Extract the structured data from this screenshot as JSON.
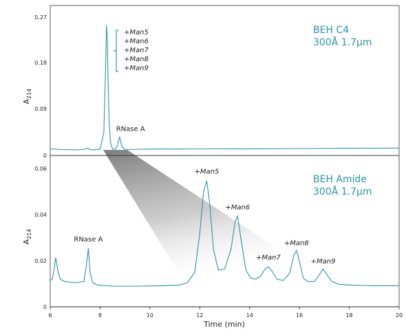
{
  "chart_data": [
    {
      "type": "line",
      "panel": "top",
      "column_label": [
        "BEH C4",
        "300Å 1.7µm"
      ],
      "ylabel": "A214",
      "ylabel_main": "A",
      "ylabel_sub": "214",
      "xlim": [
        6,
        20
      ],
      "ylim": [
        0,
        0.27
      ],
      "yticks": [
        "0",
        "0.09",
        "0.18",
        "0.27"
      ],
      "ytick_values": [
        0,
        0.09,
        0.18,
        0.27
      ],
      "line_color": "#2a93a8",
      "series": [
        {
          "x": [
            6.0,
            6.5,
            7.0,
            7.3,
            7.5,
            7.6,
            7.7,
            8.0,
            8.15,
            8.22,
            8.26,
            8.29,
            8.32,
            8.36,
            8.42,
            8.5,
            8.6,
            8.7,
            8.78,
            8.86,
            8.95,
            9.1,
            9.5,
            10,
            12,
            14,
            16,
            18,
            20
          ],
          "y": [
            0.013,
            0.0115,
            0.0112,
            0.0115,
            0.014,
            0.0115,
            0.011,
            0.012,
            0.045,
            0.17,
            0.255,
            0.23,
            0.15,
            0.07,
            0.025,
            0.013,
            0.012,
            0.02,
            0.037,
            0.02,
            0.0125,
            0.0115,
            0.0122,
            0.0125,
            0.0128,
            0.013,
            0.0135,
            0.014,
            0.0145
          ]
        }
      ],
      "annotations": [
        {
          "text": "RNase A",
          "x": 8.78,
          "y": 0.037
        },
        {
          "text": "+Man5",
          "group": "glycoforms"
        },
        {
          "text": "+Man6",
          "group": "glycoforms"
        },
        {
          "text": "+Man7",
          "group": "glycoforms"
        },
        {
          "text": "+Man8",
          "group": "glycoforms"
        },
        {
          "text": "+Man9",
          "group": "glycoforms"
        }
      ]
    },
    {
      "type": "line",
      "panel": "bottom",
      "column_label": [
        "BEH Amide",
        "300Å 1.7µm"
      ],
      "xlabel": "Time (min)",
      "ylabel": "A214",
      "ylabel_main": "A",
      "ylabel_sub": "214",
      "xlim": [
        6,
        20
      ],
      "ylim": [
        0,
        0.06
      ],
      "xticks": [
        "6",
        "8",
        "10",
        "12",
        "14",
        "16",
        "18",
        "20"
      ],
      "xtick_values": [
        6,
        8,
        10,
        12,
        14,
        16,
        18,
        20
      ],
      "yticks": [
        "0",
        "0.02",
        "0.04",
        "0.06"
      ],
      "ytick_values": [
        0,
        0.02,
        0.04,
        0.06
      ],
      "line_color": "#2a93a8",
      "series": [
        {
          "x": [
            6.0,
            6.08,
            6.15,
            6.22,
            6.3,
            6.4,
            6.6,
            7.0,
            7.35,
            7.45,
            7.53,
            7.6,
            7.7,
            7.9,
            8.5,
            9.5,
            10.5,
            11.2,
            11.5,
            11.8,
            12.0,
            12.15,
            12.28,
            12.4,
            12.55,
            12.75,
            13.0,
            13.25,
            13.42,
            13.52,
            13.65,
            13.85,
            14.05,
            14.25,
            14.45,
            14.62,
            14.75,
            14.9,
            15.1,
            15.35,
            15.6,
            15.78,
            15.88,
            16.0,
            16.15,
            16.35,
            16.6,
            16.8,
            16.95,
            17.1,
            17.3,
            17.6,
            18.0,
            18.5,
            19.0,
            19.5,
            20.0
          ],
          "y": [
            0.0115,
            0.012,
            0.016,
            0.0215,
            0.016,
            0.012,
            0.011,
            0.0105,
            0.011,
            0.018,
            0.0255,
            0.015,
            0.0105,
            0.0095,
            0.009,
            0.009,
            0.0092,
            0.0095,
            0.0105,
            0.015,
            0.032,
            0.05,
            0.055,
            0.045,
            0.025,
            0.016,
            0.0165,
            0.025,
            0.037,
            0.0395,
            0.03,
            0.016,
            0.0125,
            0.012,
            0.0135,
            0.0165,
            0.0175,
            0.0155,
            0.012,
            0.0115,
            0.0145,
            0.0225,
            0.0245,
            0.02,
            0.0125,
            0.011,
            0.011,
            0.014,
            0.0165,
            0.014,
            0.011,
            0.0098,
            0.0095,
            0.0093,
            0.0092,
            0.0092,
            0.0092
          ]
        }
      ],
      "annotations": [
        {
          "text": "RNase A",
          "x": 7.53,
          "y": 0.0255
        },
        {
          "text": "+Man5",
          "x": 12.28,
          "y": 0.055
        },
        {
          "text": "+Man6",
          "x": 13.52,
          "y": 0.0395
        },
        {
          "text": "+Man7",
          "x": 14.75,
          "y": 0.0175
        },
        {
          "text": "+Man8",
          "x": 15.88,
          "y": 0.0245
        },
        {
          "text": "+Man9",
          "x": 16.95,
          "y": 0.0165
        }
      ]
    }
  ]
}
